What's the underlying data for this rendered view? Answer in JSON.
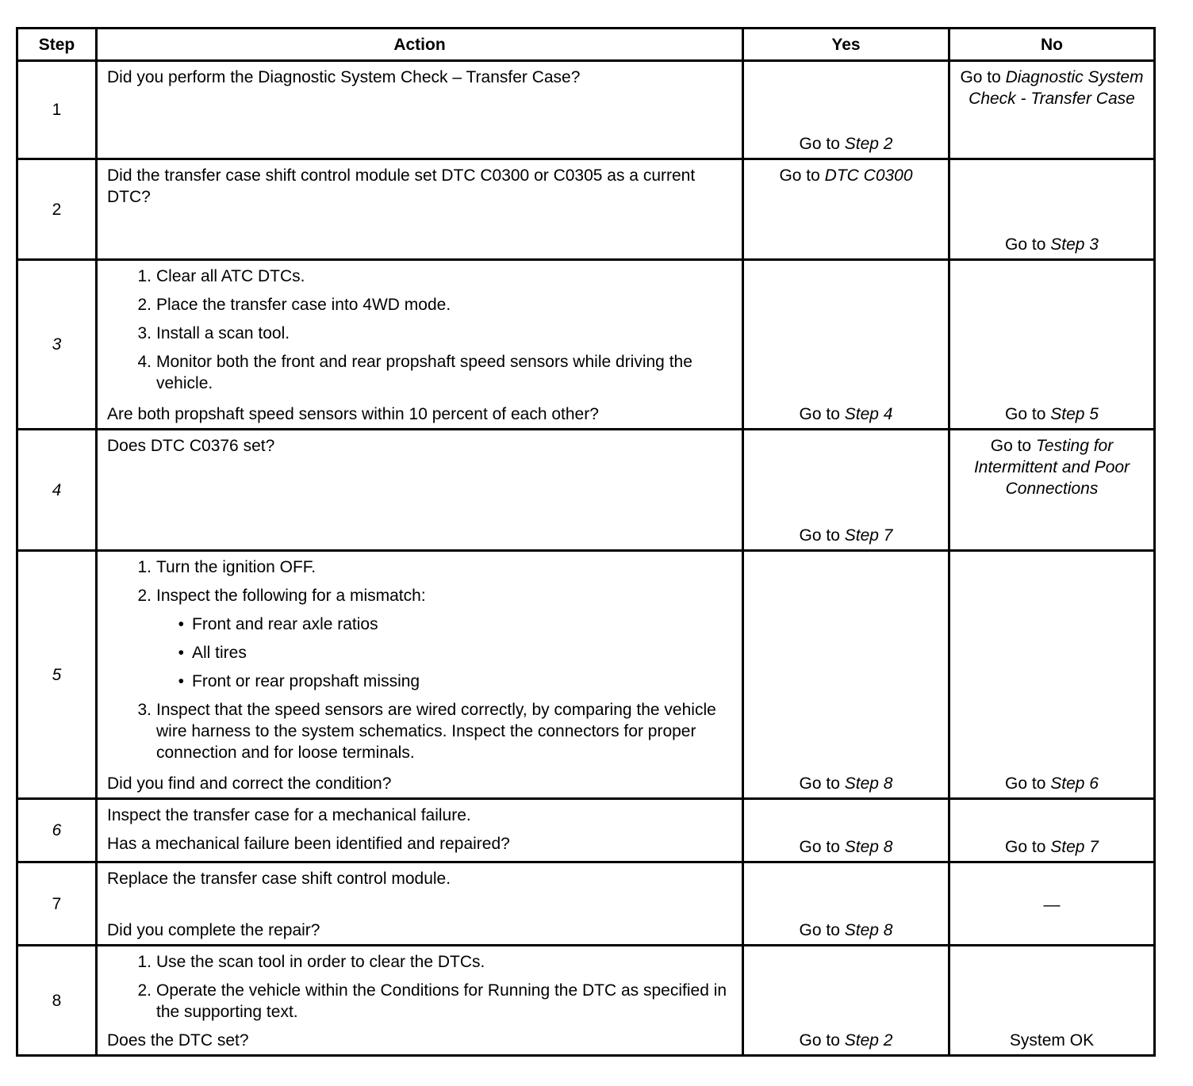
{
  "header": {
    "step": "Step",
    "action": "Action",
    "yes": "Yes",
    "no": "No"
  },
  "rows": [
    {
      "step": "1",
      "action": [
        {
          "type": "p",
          "text": "Did you perform the Diagnostic System Check – Transfer Case?"
        }
      ],
      "yes": {
        "prefix": "Go to ",
        "link": "Step 2"
      },
      "no": {
        "prefix": "Go to ",
        "link": "Diagnostic System Check - Transfer Case"
      }
    },
    {
      "step": "2",
      "action": [
        {
          "type": "p",
          "text": "Did the transfer case shift control module set DTC C0300 or C0305 as a current DTC?"
        }
      ],
      "yes": {
        "prefix": "Go to ",
        "link": "DTC C0300"
      },
      "no": {
        "prefix": "Go to ",
        "link": "Step 3"
      }
    },
    {
      "step": "3",
      "action": [
        {
          "type": "ol",
          "items": [
            {
              "n": "1.",
              "text": "Clear all ATC DTCs."
            },
            {
              "n": "2.",
              "text": "Place the transfer case into 4WD mode."
            },
            {
              "n": "3.",
              "text": "Install a scan tool."
            },
            {
              "n": "4.",
              "text": "Monitor both the front and rear propshaft speed sensors while driving the vehicle."
            }
          ]
        },
        {
          "type": "q",
          "text": "Are both propshaft speed sensors within 10 percent of each other?"
        }
      ],
      "yes": {
        "prefix": "Go to ",
        "link": "Step 4"
      },
      "no": {
        "prefix": "Go to ",
        "link": "Step 5"
      }
    },
    {
      "step": "4",
      "action": [
        {
          "type": "p",
          "text": "Does DTC C0376 set?"
        }
      ],
      "yes": {
        "prefix": "Go to ",
        "link": "Step 7"
      },
      "no": {
        "prefix": "Go to ",
        "link": "Testing for Intermittent and Poor Connections"
      }
    },
    {
      "step": "5",
      "action": [
        {
          "type": "ol",
          "items": [
            {
              "n": "1.",
              "text": "Turn the ignition OFF."
            },
            {
              "n": "2.",
              "text": "Inspect the following for a mismatch:",
              "bullets": [
                "Front and rear axle ratios",
                "All tires",
                "Front or rear propshaft missing"
              ]
            },
            {
              "n": "3.",
              "text": "Inspect that the speed sensors are wired correctly, by comparing the vehicle wire harness to the system schematics. Inspect the connectors for proper connection and for loose terminals."
            }
          ]
        },
        {
          "type": "q",
          "text": "Did you find and correct the condition?"
        }
      ],
      "yes": {
        "prefix": "Go to ",
        "link": "Step 8"
      },
      "no": {
        "prefix": "Go to ",
        "link": "Step 6"
      }
    },
    {
      "step": "6",
      "action": [
        {
          "type": "p",
          "text": "Inspect the transfer case for a mechanical failure."
        },
        {
          "type": "q",
          "text": "Has a mechanical failure been identified and repaired?"
        }
      ],
      "yes": {
        "prefix": "Go to ",
        "link": "Step 8"
      },
      "no": {
        "prefix": "Go to ",
        "link": "Step 7"
      }
    },
    {
      "step": "7",
      "action": [
        {
          "type": "p",
          "text": "Replace the transfer case shift control module."
        },
        {
          "type": "q",
          "text": "Did you complete the repair?"
        }
      ],
      "yes": {
        "prefix": "Go to ",
        "link": "Step 8"
      },
      "no": {
        "text": "—"
      }
    },
    {
      "step": "8",
      "action": [
        {
          "type": "ol",
          "items": [
            {
              "n": "1.",
              "text": "Use the scan tool in order to clear the DTCs."
            },
            {
              "n": "2.",
              "text": "Operate the vehicle within the Conditions for Running the DTC as specified in the supporting text."
            }
          ]
        },
        {
          "type": "q",
          "text": "Does the DTC set?"
        }
      ],
      "yes": {
        "prefix": "Go to ",
        "link": "Step 2"
      },
      "no": {
        "text": "System OK"
      }
    }
  ]
}
